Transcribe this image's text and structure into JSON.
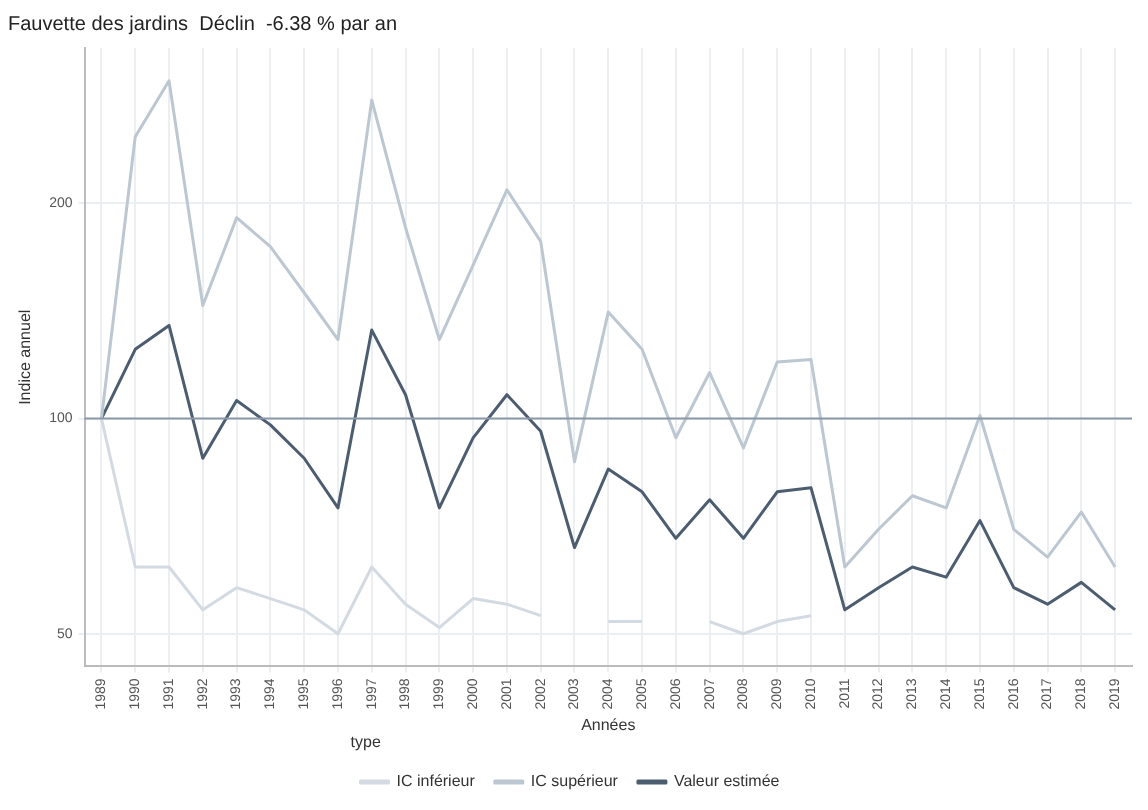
{
  "chart_data": {
    "type": "line",
    "title": "Fauvette des jardins  Déclin  -6.38 % par an",
    "xlabel": "Années",
    "ylabel": "Indice annuel",
    "legend_title": "type",
    "categories": [
      "1989",
      "1990",
      "1991",
      "1992",
      "1993",
      "1994",
      "1995",
      "1996",
      "1997",
      "1998",
      "1999",
      "2000",
      "2001",
      "2002",
      "2003",
      "2004",
      "2005",
      "2006",
      "2007",
      "2008",
      "2009",
      "2010",
      "2011",
      "2012",
      "2013",
      "2014",
      "2015",
      "2016",
      "2017",
      "2018",
      "2019"
    ],
    "series": [
      {
        "name": "IC inférieur",
        "color": "#d3dae2",
        "values": [
          100,
          62,
          62,
          54,
          58,
          56,
          54,
          50,
          62,
          55,
          51,
          56,
          55,
          53,
          null,
          52,
          52,
          null,
          52,
          50,
          52,
          53,
          null,
          null,
          null,
          null,
          null,
          null,
          null,
          null,
          null
        ]
      },
      {
        "name": "IC supérieur",
        "color": "#bcc7d2",
        "values": [
          100,
          248,
          297,
          144,
          191,
          174,
          150,
          129,
          279,
          185,
          129,
          164,
          209,
          177,
          87,
          141,
          125,
          94,
          116,
          91,
          120,
          121,
          62,
          70,
          78,
          75,
          101,
          70,
          64,
          74,
          62
        ]
      },
      {
        "name": "Valeur estimée",
        "color": "#4d5d70",
        "values": [
          100,
          125,
          135,
          88,
          106,
          98,
          88,
          75,
          133,
          108,
          75,
          94,
          108,
          96,
          66,
          85,
          79,
          68,
          77,
          68,
          79,
          80,
          54,
          58,
          62,
          60,
          72,
          58,
          55,
          59,
          54
        ]
      }
    ],
    "log": "y",
    "ylim": [
      45,
      330
    ],
    "yticks": [
      50,
      100,
      200
    ],
    "grid": true,
    "legend": "bottom",
    "marker": "none",
    "line_style": "solid",
    "ref_lines": [
      {
        "axis": "y",
        "value": 100,
        "color": "#8a98a8"
      }
    ]
  }
}
